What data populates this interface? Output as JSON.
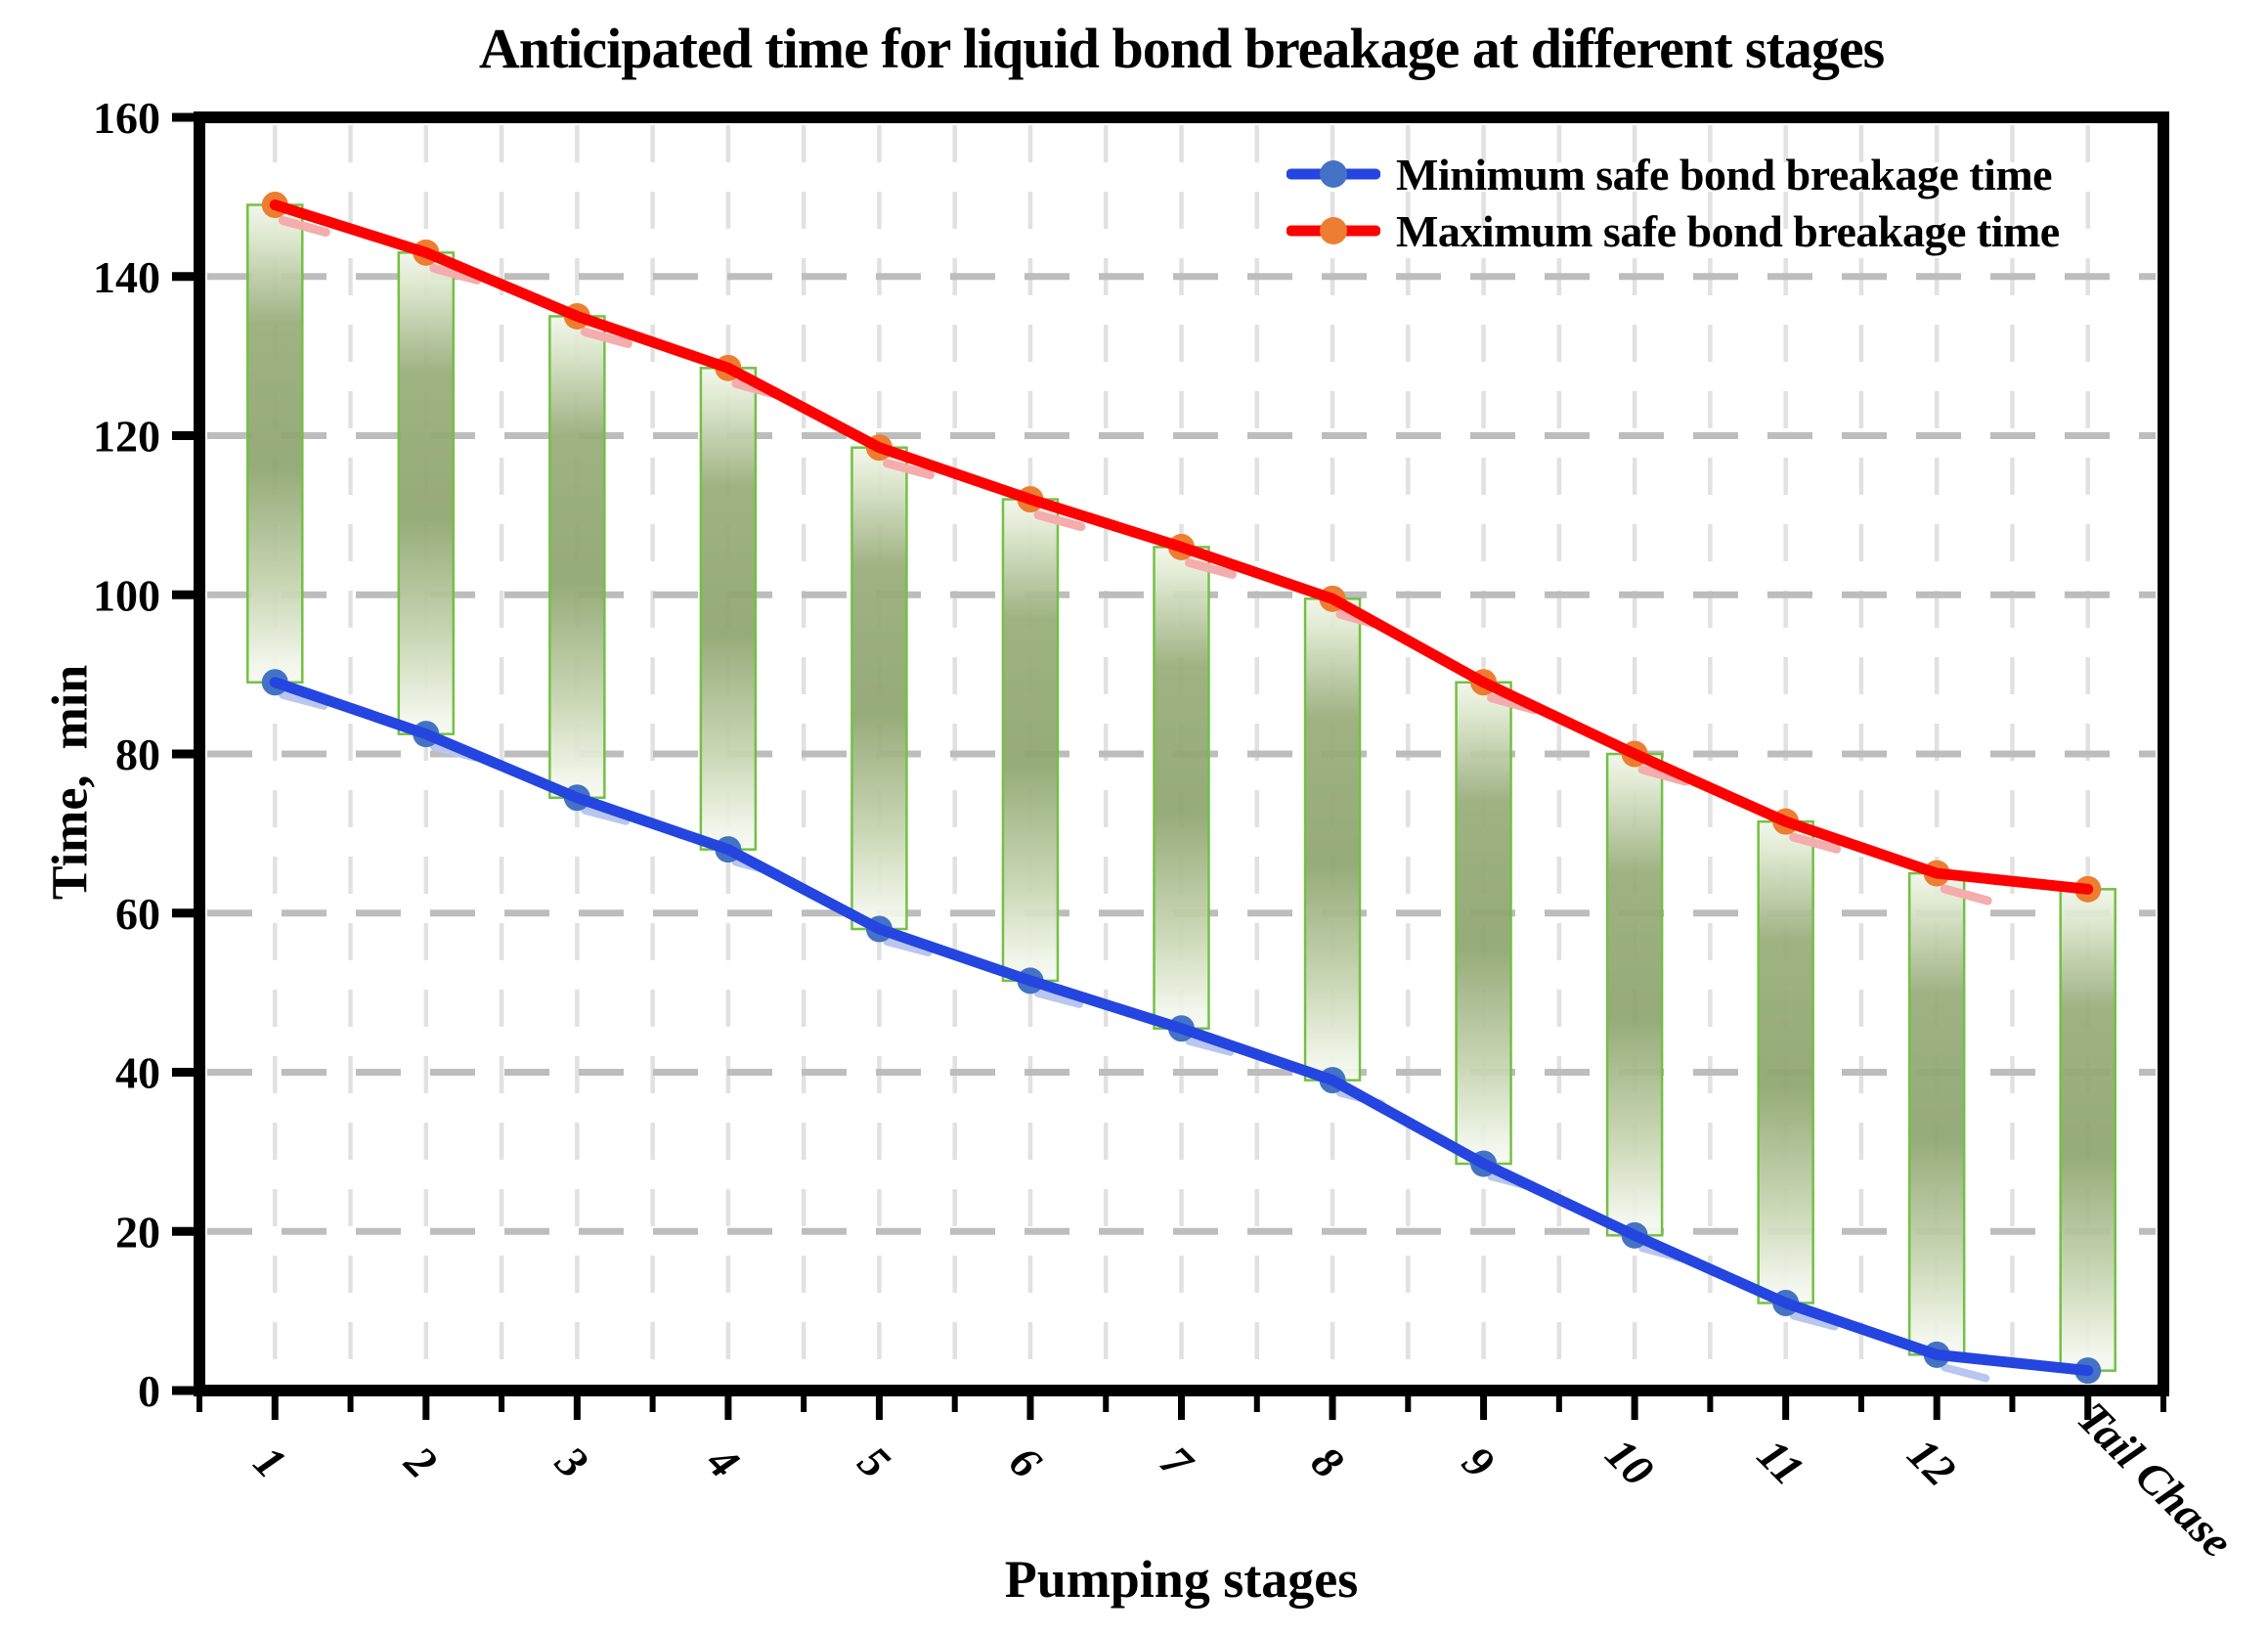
{
  "chart_data": {
    "type": "line",
    "title": "Anticipated time for liquid bond breakage at different stages",
    "xlabel": "Pumping stages",
    "ylabel": "Time,  min",
    "categories": [
      "1",
      "2",
      "3",
      "4",
      "5",
      "6",
      "7",
      "8",
      "9",
      "10",
      "11",
      "12",
      "Tail Chase"
    ],
    "series": [
      {
        "name": "Minimum safe bond breakage time",
        "color": "#2445E0",
        "marker_color": "#4472C4",
        "values": [
          89,
          82.5,
          74.5,
          68,
          58,
          51.5,
          45.5,
          39,
          28.5,
          19.5,
          11,
          4.5,
          2.5
        ]
      },
      {
        "name": "Maximum safe bond breakage time",
        "color": "#FF0000",
        "marker_color": "#ED7D31",
        "values": [
          149,
          143,
          135,
          128.5,
          118.5,
          112,
          106,
          99.5,
          89,
          80,
          71.5,
          65,
          63
        ]
      }
    ],
    "ylim": [
      0,
      160
    ],
    "yticks": [
      0,
      20,
      40,
      60,
      80,
      100,
      120,
      140,
      160
    ],
    "grid": true,
    "legend_position": "top-right-inside",
    "range_bars": {
      "between": [
        "min",
        "max"
      ],
      "fill": "green-gradient",
      "stroke": "#74C044",
      "mid_color": "#8FA671"
    }
  },
  "legend": {
    "items": [
      {
        "label": "Minimum safe bond breakage time"
      },
      {
        "label": "Maximum safe bond breakage time"
      }
    ]
  }
}
